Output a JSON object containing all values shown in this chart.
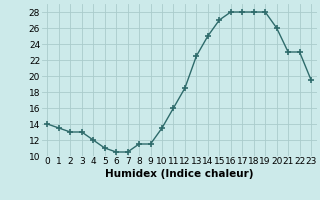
{
  "x": [
    0,
    1,
    2,
    3,
    4,
    5,
    6,
    7,
    8,
    9,
    10,
    11,
    12,
    13,
    14,
    15,
    16,
    17,
    18,
    19,
    20,
    21,
    22,
    23
  ],
  "y": [
    14,
    13.5,
    13,
    13,
    12,
    11,
    10.5,
    10.5,
    11.5,
    11.5,
    13.5,
    16,
    18.5,
    22.5,
    25,
    27,
    28,
    28,
    28,
    28,
    26,
    23,
    23,
    19.5
  ],
  "line_color": "#2e6b6b",
  "marker_color": "#2e6b6b",
  "background_color": "#cceaea",
  "grid_color": "#aacccc",
  "xlabel": "Humidex (Indice chaleur)",
  "ylim": [
    10,
    29
  ],
  "xlim": [
    -0.5,
    23.5
  ],
  "yticks": [
    10,
    12,
    14,
    16,
    18,
    20,
    22,
    24,
    26,
    28
  ],
  "xticks": [
    0,
    1,
    2,
    3,
    4,
    5,
    6,
    7,
    8,
    9,
    10,
    11,
    12,
    13,
    14,
    15,
    16,
    17,
    18,
    19,
    20,
    21,
    22,
    23
  ],
  "xlabel_fontsize": 7.5,
  "tick_fontsize": 6.5,
  "linewidth": 1.0,
  "markersize": 4.5
}
